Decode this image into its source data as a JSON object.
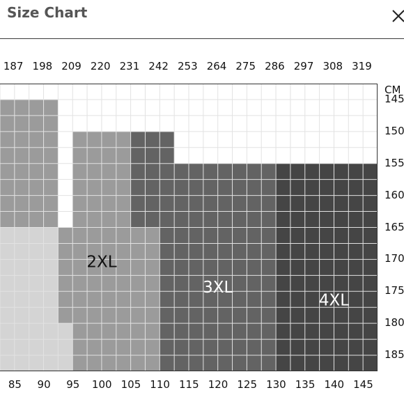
{
  "header": {
    "title": "Size Chart",
    "close_icon": "close-icon"
  },
  "chart_data": {
    "type": "heatmap",
    "title": "Size Chart",
    "x_label": "",
    "y_label": "",
    "y_unit": "CM",
    "top_ticks": [
      "187",
      "198",
      "209",
      "220",
      "231",
      "242",
      "253",
      "264",
      "275",
      "286",
      "297",
      "308",
      "319"
    ],
    "bottom_ticks": [
      "85",
      "90",
      "95",
      "100",
      "105",
      "110",
      "115",
      "120",
      "125",
      "130",
      "135",
      "140",
      "145"
    ],
    "right_ticks": [
      "CM",
      "145",
      "150",
      "155",
      "160",
      "165",
      "170",
      "175",
      "180",
      "185"
    ],
    "x_range": [
      82.5,
      147.5
    ],
    "y_range": [
      142.5,
      187.5
    ],
    "grid": true,
    "regions": [
      {
        "label": "",
        "color": "#d4d4d4",
        "x": [
          82.5,
          92.5
        ],
        "y": [
          165,
          187.5
        ]
      },
      {
        "label": "",
        "color": "#d4d4d4",
        "x": [
          92.5,
          95
        ],
        "y": [
          180,
          187.5
        ]
      },
      {
        "label": "",
        "color": "#9b9b9b",
        "x": [
          82.5,
          92.5
        ],
        "y": [
          145,
          165
        ]
      },
      {
        "label": "",
        "color": "#9b9b9b",
        "x": [
          92.5,
          95
        ],
        "y": [
          165,
          180
        ]
      },
      {
        "label": "2XL",
        "color": "#9b9b9b",
        "x": [
          95,
          105
        ],
        "y": [
          150,
          187.5
        ]
      },
      {
        "label": "",
        "color": "#9b9b9b",
        "x": [
          105,
          110
        ],
        "y": [
          165,
          187.5
        ]
      },
      {
        "label": "",
        "color": "#636363",
        "x": [
          105,
          112.5
        ],
        "y": [
          150,
          165
        ]
      },
      {
        "label": "3XL",
        "color": "#636363",
        "x": [
          110,
          130
        ],
        "y": [
          155,
          187.5
        ]
      },
      {
        "label": "4XL",
        "color": "#454545",
        "x": [
          130,
          147.5
        ],
        "y": [
          155,
          187.5
        ]
      }
    ],
    "region_labels": [
      {
        "text": "2XL",
        "x": 100,
        "y": 170.5,
        "color": "#111111"
      },
      {
        "text": "3XL",
        "x": 120,
        "y": 174.5,
        "color": "#ffffff"
      },
      {
        "text": "4XL",
        "x": 140,
        "y": 176.5,
        "color": "#ffffff"
      }
    ]
  }
}
